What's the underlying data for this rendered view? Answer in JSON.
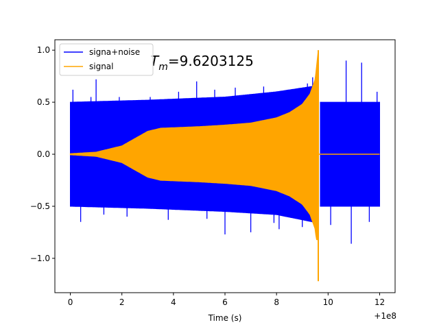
{
  "chart_data": {
    "type": "line",
    "title": "",
    "xlabel": "Time (s)",
    "ylabel": "",
    "xlim": [
      -0.6,
      12.6
    ],
    "ylim": [
      -1.33,
      1.1
    ],
    "x_ticks": [
      0,
      2,
      4,
      6,
      8,
      10,
      12
    ],
    "x_tick_labels": [
      "0",
      "2",
      "4",
      "6",
      "8",
      "10",
      "12"
    ],
    "x_offset_label": "+1e8",
    "y_ticks": [
      -1.0,
      -0.5,
      0.0,
      0.5,
      1.0
    ],
    "y_tick_labels": [
      "−1.0",
      "−0.5",
      "0.0",
      "0.5",
      "1.0"
    ],
    "grid": false,
    "legend_position": "upper-left",
    "annotation": {
      "symbol": "T",
      "subscript": "m",
      "value": "=9.6203125",
      "x": 3.1,
      "y": 0.85
    },
    "series": [
      {
        "name": "signa+noise",
        "color": "#0000ff",
        "x_range": [
          0,
          12
        ],
        "upper_envelope": [
          [
            0,
            0.5
          ],
          [
            3,
            0.52
          ],
          [
            6,
            0.55
          ],
          [
            8,
            0.6
          ],
          [
            9.6,
            0.66
          ],
          [
            9.7,
            0.5
          ],
          [
            12,
            0.5
          ]
        ],
        "lower_envelope": [
          [
            0,
            -0.5
          ],
          [
            3,
            -0.52
          ],
          [
            6,
            -0.55
          ],
          [
            8,
            -0.58
          ],
          [
            9.6,
            -0.66
          ],
          [
            9.7,
            -0.5
          ],
          [
            12,
            -0.5
          ]
        ],
        "spikes": [
          [
            0.1,
            0.62
          ],
          [
            0.4,
            -0.65
          ],
          [
            0.8,
            0.55
          ],
          [
            1.0,
            0.72
          ],
          [
            1.3,
            -0.58
          ],
          [
            1.9,
            0.55
          ],
          [
            2.2,
            -0.6
          ],
          [
            3.1,
            0.55
          ],
          [
            3.8,
            -0.63
          ],
          [
            4.2,
            0.6
          ],
          [
            4.9,
            0.7
          ],
          [
            5.3,
            -0.62
          ],
          [
            5.6,
            0.62
          ],
          [
            6.0,
            -0.77
          ],
          [
            6.4,
            0.64
          ],
          [
            7.0,
            -0.75
          ],
          [
            7.5,
            0.65
          ],
          [
            7.9,
            -0.66
          ],
          [
            8.1,
            -0.72
          ],
          [
            8.6,
            0.6
          ],
          [
            9.0,
            -0.7
          ],
          [
            9.2,
            0.68
          ],
          [
            9.4,
            0.74
          ],
          [
            10.1,
            -0.68
          ],
          [
            10.7,
            0.9
          ],
          [
            10.9,
            -0.86
          ],
          [
            11.3,
            0.88
          ],
          [
            11.6,
            -0.65
          ],
          [
            11.9,
            0.6
          ]
        ]
      },
      {
        "name": "signal",
        "color": "#ffa500",
        "envelope": [
          [
            0,
            0.005
          ],
          [
            1,
            0.02
          ],
          [
            2,
            0.08
          ],
          [
            2.5,
            0.15
          ],
          [
            3,
            0.22
          ],
          [
            3.5,
            0.25
          ],
          [
            4,
            0.255
          ],
          [
            5,
            0.265
          ],
          [
            6,
            0.28
          ],
          [
            7,
            0.3
          ],
          [
            8,
            0.35
          ],
          [
            8.5,
            0.4
          ],
          [
            9,
            0.48
          ],
          [
            9.3,
            0.58
          ],
          [
            9.5,
            0.72
          ],
          [
            9.62,
            1.0
          ]
        ],
        "merger": {
          "t": 9.62,
          "max": 1.0,
          "min": -1.22
        },
        "ringdown": [
          [
            9.62,
            0.0
          ],
          [
            12,
            0.0
          ]
        ]
      }
    ]
  }
}
